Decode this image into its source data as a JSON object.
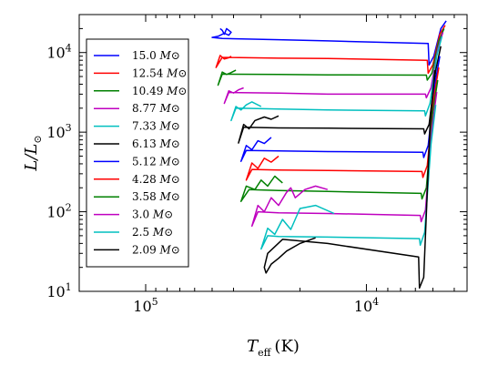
{
  "chart_data": {
    "type": "line",
    "title": "",
    "xlabel": {
      "symbol": "T",
      "subscript": "eff",
      "unit": "(K)"
    },
    "ylabel": {
      "symbol": "L/L",
      "subscript": "⊙"
    },
    "x_scale": "log",
    "x_inverted": true,
    "xlim": [
      200000,
      3500
    ],
    "y_scale": "log",
    "ylim": [
      10,
      30000
    ],
    "x_ticks": [
      {
        "value": 100000,
        "base": "10",
        "exp": "5"
      },
      {
        "value": 10000,
        "base": "10",
        "exp": "4"
      }
    ],
    "y_ticks": [
      {
        "value": 10,
        "base": "10",
        "exp": "1"
      },
      {
        "value": 100,
        "base": "10",
        "exp": "2"
      },
      {
        "value": 1000,
        "base": "10",
        "exp": "3"
      },
      {
        "value": 10000,
        "base": "10",
        "exp": "4"
      }
    ],
    "grid": false,
    "legend_position": "upper-left",
    "legend_unit": "M⊙",
    "series": [
      {
        "name": "15.0",
        "color": "#0000ff",
        "x": [
          4350,
          4600,
          4950,
          5200,
          5250,
          15000,
          25000,
          45000,
          50000,
          47000,
          44000,
          42000,
          41000,
          43000,
          44000,
          45000,
          46000
        ],
        "y": [
          25000,
          20000,
          9000,
          7000,
          13000,
          14000,
          14500,
          15000,
          15500,
          16000,
          17500,
          16500,
          18000,
          20000,
          17000,
          19000,
          20000
        ]
      },
      {
        "name": "12.54",
        "color": "#ff0000",
        "x": [
          4400,
          4650,
          5000,
          5250,
          5300,
          15000,
          25000,
          45000,
          48000,
          46000,
          44000,
          42000,
          41000
        ],
        "y": [
          22000,
          17000,
          7000,
          5500,
          8000,
          8400,
          8500,
          8700,
          6500,
          9200,
          8300,
          8600,
          9000
        ]
      },
      {
        "name": "10.49",
        "color": "#008000",
        "x": [
          4450,
          4700,
          5050,
          5300,
          5350,
          15000,
          25000,
          45000,
          47000,
          45000,
          43000,
          41000,
          39000
        ],
        "y": [
          20000,
          14000,
          5500,
          4500,
          5200,
          5250,
          5300,
          5350,
          3900,
          5700,
          5300,
          5600,
          6000
        ]
      },
      {
        "name": "8.77",
        "color": "#bf00bf",
        "x": [
          4500,
          4750,
          5100,
          5350,
          5400,
          15000,
          25000,
          42000,
          44000,
          42000,
          40000,
          38000,
          36000
        ],
        "y": [
          18000,
          11000,
          3600,
          2700,
          3000,
          3000,
          3100,
          3150,
          2300,
          3300,
          3100,
          3400,
          3600
        ]
      },
      {
        "name": "7.33",
        "color": "#00bfbf",
        "x": [
          4550,
          4800,
          5150,
          5400,
          5450,
          15000,
          25000,
          39000,
          41000,
          39000,
          37000,
          35000,
          33000,
          30000
        ],
        "y": [
          16000,
          9000,
          2300,
          1600,
          1850,
          1900,
          1950,
          2000,
          1400,
          2100,
          1900,
          2200,
          2400,
          2100
        ]
      },
      {
        "name": "6.13",
        "color": "#000000",
        "x": [
          4600,
          4850,
          5200,
          5450,
          5500,
          15000,
          25000,
          36000,
          38000,
          36000,
          34000,
          32000,
          29000,
          27000,
          25000
        ],
        "y": [
          12000,
          6000,
          1250,
          950,
          1100,
          1120,
          1130,
          1150,
          730,
          1250,
          1100,
          1400,
          1550,
          1450,
          1600
        ]
      },
      {
        "name": "5.12",
        "color": "#0000ff",
        "x": [
          4650,
          4900,
          5250,
          5500,
          5550,
          15000,
          25000,
          35000,
          37000,
          35000,
          33000,
          31000,
          29000,
          27000
        ],
        "y": [
          9000,
          4000,
          680,
          480,
          560,
          570,
          580,
          590,
          430,
          680,
          600,
          780,
          720,
          860
        ]
      },
      {
        "name": "4.28",
        "color": "#ff0000",
        "x": [
          4700,
          4950,
          5300,
          5550,
          5600,
          15000,
          25000,
          33000,
          35000,
          33000,
          31000,
          29000,
          27000,
          25000
        ],
        "y": [
          6500,
          2700,
          380,
          270,
          320,
          330,
          335,
          340,
          250,
          410,
          350,
          470,
          420,
          500
        ]
      },
      {
        "name": "3.58",
        "color": "#008000",
        "x": [
          4750,
          5000,
          5350,
          5600,
          5650,
          15000,
          25000,
          34000,
          37000,
          35000,
          32000,
          30000,
          28000,
          26000,
          24000
        ],
        "y": [
          4500,
          1800,
          200,
          145,
          170,
          180,
          185,
          190,
          135,
          210,
          190,
          250,
          210,
          280,
          230
        ]
      },
      {
        "name": "3.0",
        "color": "#bf00bf",
        "x": [
          4800,
          5050,
          5400,
          5650,
          5700,
          15000,
          25000,
          31000,
          33000,
          31000,
          29000,
          27000,
          25000,
          23000,
          22000,
          21000,
          19000,
          17000,
          15000
        ],
        "y": [
          3200,
          1100,
          105,
          75,
          90,
          95,
          97,
          100,
          66,
          120,
          100,
          150,
          120,
          175,
          200,
          150,
          190,
          210,
          190
        ]
      },
      {
        "name": "2.5",
        "color": "#00bfbf",
        "x": [
          4850,
          5100,
          5450,
          5700,
          5750,
          15000,
          25000,
          28000,
          30000,
          28000,
          26000,
          24000,
          22000,
          20000,
          17000,
          14000
        ],
        "y": [
          2200,
          700,
          55,
          38,
          46,
          48,
          49,
          50,
          34,
          62,
          52,
          80,
          60,
          110,
          120,
          95
        ]
      },
      {
        "name": "2.09",
        "color": "#000000",
        "x": [
          4900,
          5150,
          5500,
          5750,
          5800,
          15000,
          24000,
          28000,
          29000,
          28500,
          27000,
          25000,
          23000,
          20000,
          17000
        ],
        "y": [
          6000,
          1200,
          15,
          11,
          27,
          40,
          45,
          30,
          20,
          17,
          22,
          26,
          32,
          40,
          47
        ]
      }
    ]
  }
}
